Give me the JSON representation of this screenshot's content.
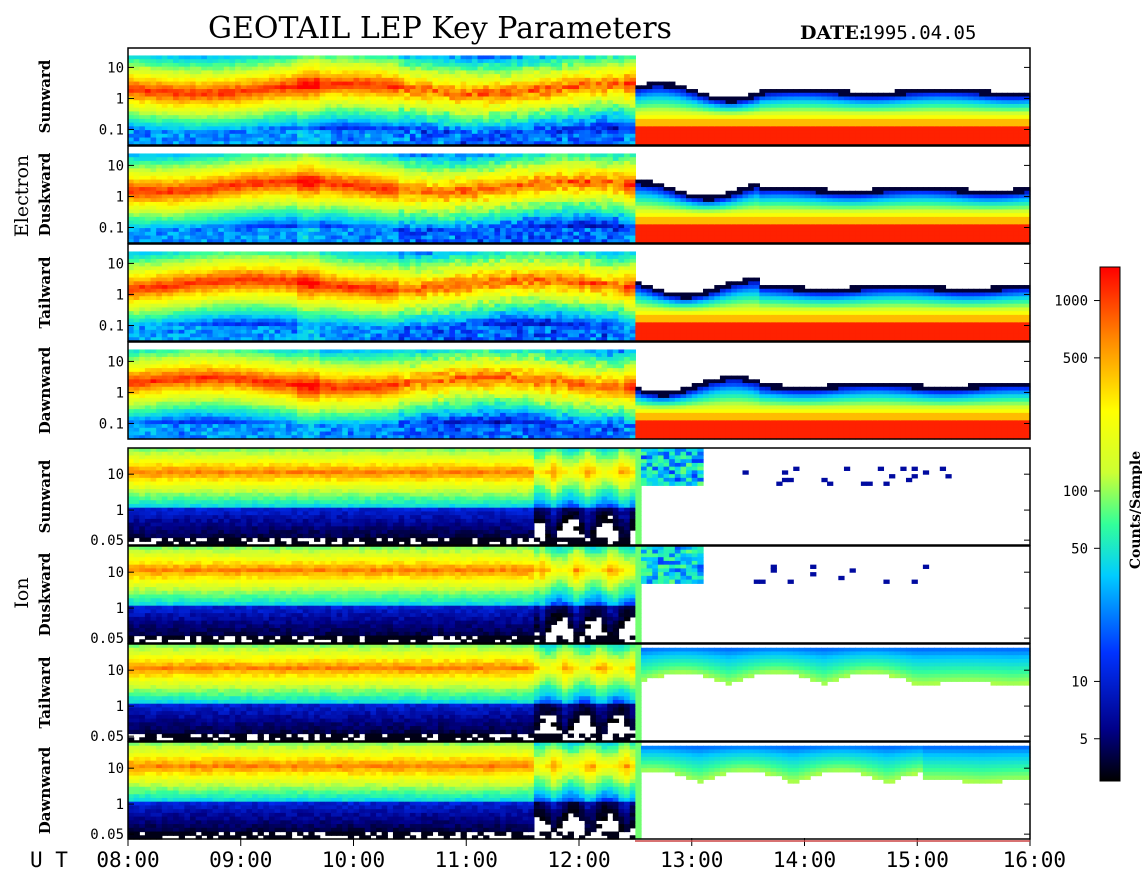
{
  "title": "GEOTAIL LEP Key Parameters",
  "date": {
    "label": "DATE:",
    "value": "1995.04.05"
  },
  "x_axis": {
    "prefix": "U T",
    "ticks": [
      "08:00",
      "09:00",
      "10:00",
      "11:00",
      "12:00",
      "13:00",
      "14:00",
      "15:00",
      "16:00"
    ]
  },
  "colorbar": {
    "title": "Counts/Sample",
    "ticks": [
      "1000",
      "500",
      "100",
      "50",
      "10",
      "5"
    ],
    "stops": [
      "#000000",
      "#000088",
      "#0033ff",
      "#00ccff",
      "#33ff99",
      "#ccff33",
      "#ffff00",
      "#ff8800",
      "#ff0000"
    ]
  },
  "chart_data": {
    "type": "heatmap",
    "title": "GEOTAIL LEP Key Parameters",
    "date": "1995.04.05",
    "x_range": [
      "08:00",
      "16:00"
    ],
    "colorbar": {
      "label": "Counts/Sample",
      "scale": "log",
      "range": [
        3,
        1500
      ],
      "ticks": [
        5,
        10,
        50,
        100,
        500,
        1000
      ]
    },
    "groups": [
      {
        "species": "Electron",
        "y_ticks": [
          "10",
          "1",
          "0.1"
        ],
        "y_scale": "log",
        "panels": [
          {
            "direction": "Sunward"
          },
          {
            "direction": "Duskward"
          },
          {
            "direction": "Tailward"
          },
          {
            "direction": "Dawnward"
          }
        ]
      },
      {
        "species": "Ion",
        "y_ticks": [
          "10",
          "1",
          "0.05"
        ],
        "y_scale": "log",
        "panels": [
          {
            "direction": "Sunward"
          },
          {
            "direction": "Duskward"
          },
          {
            "direction": "Tailward"
          },
          {
            "direction": "Dawnward"
          }
        ]
      }
    ]
  }
}
